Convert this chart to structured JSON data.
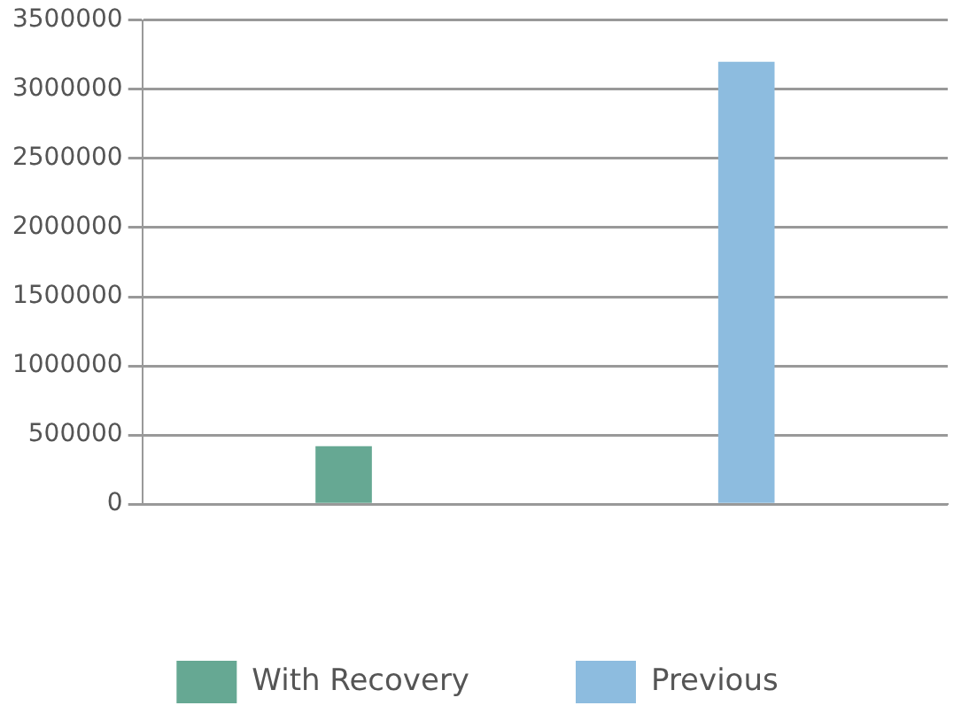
{
  "chart_data": {
    "type": "bar",
    "categories": [
      null
    ],
    "series": [
      {
        "name": "With Recovery",
        "color": "#66a893",
        "values": [
          420000
        ]
      },
      {
        "name": "Previous",
        "color": "#8dbcdf",
        "values": [
          3200000
        ]
      }
    ],
    "ylim": [
      0,
      3500000
    ],
    "yticks": [
      0,
      500000,
      1000000,
      1500000,
      2000000,
      2500000,
      3000000,
      3500000
    ],
    "grid": "y",
    "legend": "bottom"
  }
}
